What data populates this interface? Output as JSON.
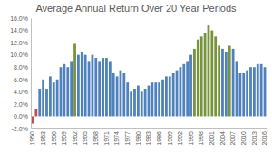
{
  "chart_data": {
    "type": "bar",
    "title": "Average Annual Return Over 20 Year Periods",
    "categories": [
      "1950",
      null,
      null,
      "1953",
      null,
      null,
      "1956",
      null,
      null,
      "1959",
      null,
      null,
      "1962",
      null,
      null,
      "1965",
      null,
      null,
      "1968",
      null,
      null,
      "1971",
      null,
      null,
      "1974",
      null,
      null,
      "1977",
      null,
      null,
      "1980",
      null,
      null,
      "1983",
      null,
      null,
      "1986",
      null,
      null,
      "1989",
      null,
      null,
      "1992",
      null,
      null,
      "1995",
      null,
      null,
      "1998",
      null,
      null,
      "2001",
      null,
      null,
      "2004",
      null,
      null,
      "2007",
      null,
      null,
      "2010",
      null,
      null,
      "2013",
      null,
      null,
      "2016"
    ],
    "values": [
      -1.2,
      1.2,
      4.5,
      6.0,
      4.5,
      6.5,
      5.5,
      6.0,
      8.0,
      8.5,
      8.0,
      9.0,
      11.8,
      10.0,
      10.5,
      10.0,
      9.0,
      10.0,
      9.5,
      9.0,
      9.5,
      9.5,
      9.0,
      7.0,
      6.5,
      7.5,
      7.0,
      5.5,
      4.0,
      4.5,
      5.0,
      4.0,
      4.5,
      5.0,
      5.5,
      5.5,
      5.5,
      6.0,
      6.5,
      6.5,
      7.0,
      7.5,
      8.0,
      8.5,
      9.0,
      10.0,
      11.0,
      12.5,
      13.0,
      13.5,
      14.8,
      14.0,
      13.0,
      11.5,
      11.0,
      10.5,
      11.5,
      11.0,
      9.0,
      7.0,
      7.0,
      7.5,
      8.0,
      8.0,
      8.5,
      8.5,
      8.0
    ],
    "colors": [
      "#c0504d",
      "#c0504d",
      "#4f81bd",
      "#4f81bd",
      "#4f81bd",
      "#4f81bd",
      "#4f81bd",
      "#4f81bd",
      "#4f81bd",
      "#4f81bd",
      "#4f81bd",
      "#4f81bd",
      "#77933c",
      "#4f81bd",
      "#4f81bd",
      "#4f81bd",
      "#4f81bd",
      "#4f81bd",
      "#4f81bd",
      "#4f81bd",
      "#4f81bd",
      "#4f81bd",
      "#4f81bd",
      "#4f81bd",
      "#4f81bd",
      "#4f81bd",
      "#4f81bd",
      "#4f81bd",
      "#4f81bd",
      "#4f81bd",
      "#4f81bd",
      "#4f81bd",
      "#4f81bd",
      "#4f81bd",
      "#4f81bd",
      "#4f81bd",
      "#4f81bd",
      "#4f81bd",
      "#4f81bd",
      "#4f81bd",
      "#4f81bd",
      "#4f81bd",
      "#4f81bd",
      "#4f81bd",
      "#4f81bd",
      "#4f81bd",
      "#77933c",
      "#77933c",
      "#77933c",
      "#77933c",
      "#77933c",
      "#77933c",
      "#77933c",
      "#77933c",
      "#4f81bd",
      "#4f81bd",
      "#77933c",
      "#4f81bd",
      "#4f81bd",
      "#4f81bd",
      "#4f81bd",
      "#4f81bd",
      "#4f81bd",
      "#4f81bd",
      "#4f81bd",
      "#4f81bd",
      "#4f81bd"
    ],
    "ylim": [
      -2,
      16
    ],
    "yticks": [
      {
        "value": -2,
        "label": "-2.0%"
      },
      {
        "value": 0,
        "label": "0.0%"
      },
      {
        "value": 2,
        "label": "2.0%"
      },
      {
        "value": 4,
        "label": "4.0%"
      },
      {
        "value": 6,
        "label": "6.0%"
      },
      {
        "value": 8,
        "label": "8.0%"
      },
      {
        "value": 10,
        "label": "10.0%"
      },
      {
        "value": 12,
        "label": "12.0%"
      },
      {
        "value": 14,
        "label": "14.0%"
      },
      {
        "value": 16,
        "label": "16.0%"
      }
    ],
    "grid": false
  }
}
